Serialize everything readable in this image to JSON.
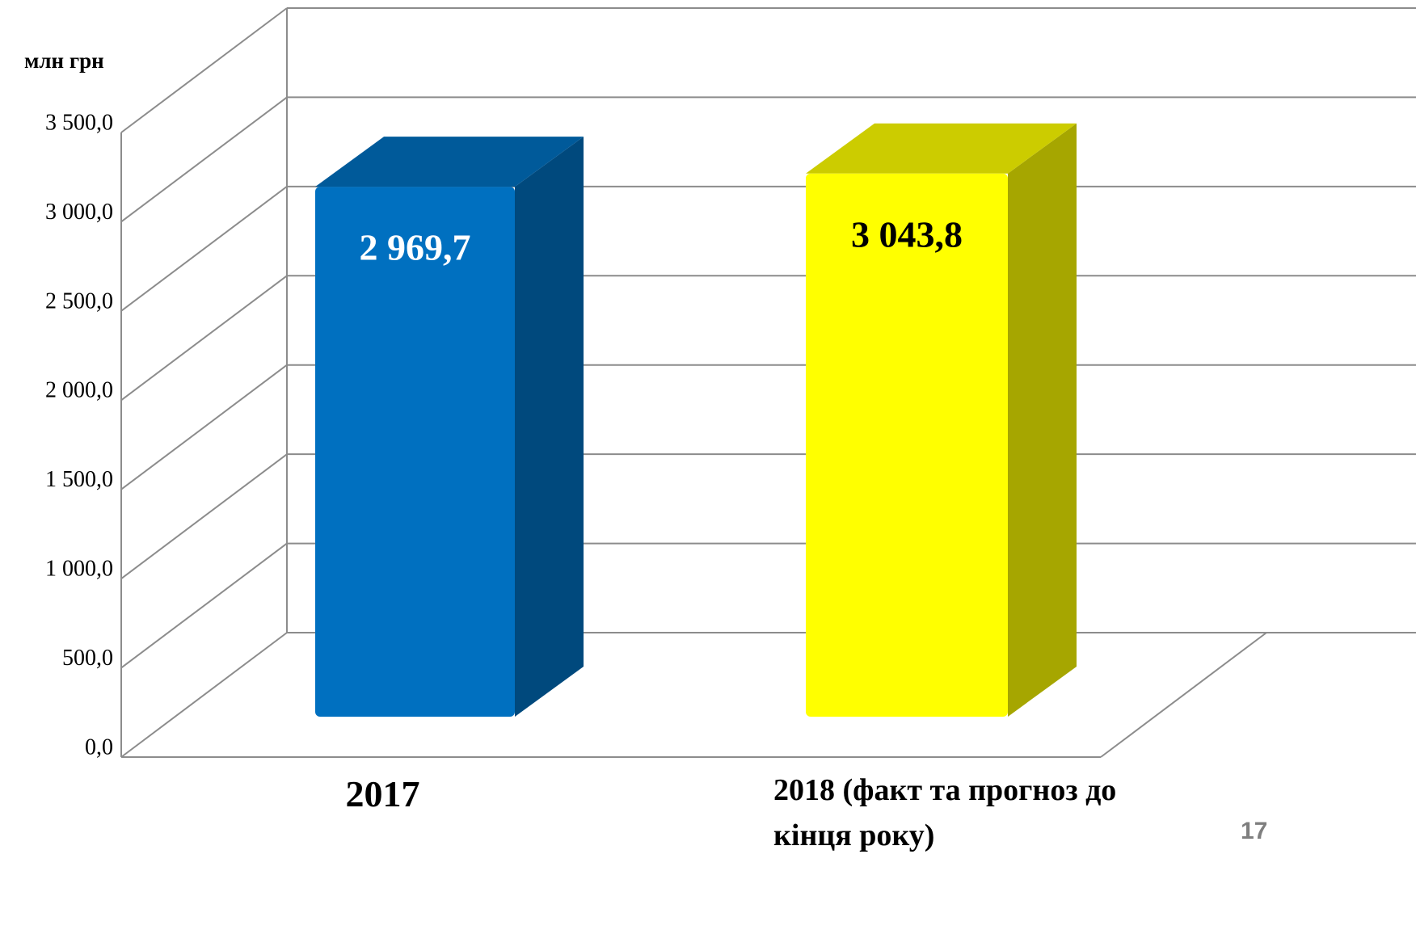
{
  "chart_data": {
    "type": "bar3d",
    "y_label": "млн грн",
    "categories": [
      "2017",
      "2018 (факт та прогноз до кінця року)"
    ],
    "values": [
      2969.7,
      3043.8
    ],
    "value_labels": [
      "2 969,7",
      "3 043,8"
    ],
    "colors": [
      "#0070c0",
      "#ffff00"
    ],
    "value_label_colors": [
      "#ffffff",
      "#000000"
    ],
    "ylim": [
      0,
      3500
    ],
    "yticks": [
      {
        "value": 0,
        "label": "0,0"
      },
      {
        "value": 500,
        "label": "500,0"
      },
      {
        "value": 1000,
        "label": "1 000,0"
      },
      {
        "value": 1500,
        "label": "1 500,0"
      },
      {
        "value": 2000,
        "label": "2 000,0"
      },
      {
        "value": 2500,
        "label": "2 500,0"
      },
      {
        "value": 3000,
        "label": "3 000,0"
      },
      {
        "value": 3500,
        "label": "3 500,0"
      }
    ],
    "grid": true
  },
  "page_number": "17"
}
